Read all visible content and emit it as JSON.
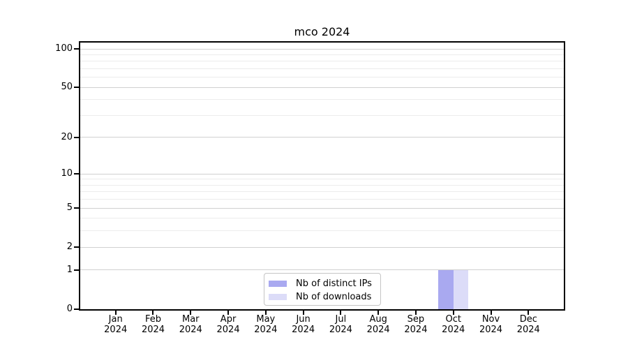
{
  "chart_data": {
    "type": "bar",
    "title": "mco 2024",
    "categories": [
      "Jan",
      "Feb",
      "Mar",
      "Apr",
      "May",
      "Jun",
      "Jul",
      "Aug",
      "Sep",
      "Oct",
      "Nov",
      "Dec"
    ],
    "x_year_label": "2024",
    "series": [
      {
        "name": "Nb of distinct IPs",
        "color": "#a9a9f0",
        "values": [
          0,
          0,
          0,
          0,
          0,
          0,
          0,
          0,
          0,
          1,
          0,
          0
        ]
      },
      {
        "name": "Nb of downloads",
        "color": "#dcdcf8",
        "values": [
          0,
          0,
          0,
          0,
          0,
          0,
          0,
          0,
          0,
          1,
          0,
          0
        ]
      }
    ],
    "y_axis": {
      "scale": "log10(1+x)",
      "max": 112,
      "ticks": [
        0,
        1,
        2,
        5,
        10,
        20,
        50,
        100
      ],
      "minor_gridlines": [
        3,
        4,
        6,
        7,
        8,
        9,
        30,
        40,
        60,
        70,
        80,
        90
      ]
    },
    "legend_position": "bottom-center-inside",
    "grid": "horizontal",
    "colors": {
      "bar_distinct_ips": "#a9a9f0",
      "bar_downloads": "#dcdcf8",
      "major_gridline": "#d0d0d0",
      "minor_gridline": "#ececec",
      "axis": "#000000",
      "background": "#ffffff"
    }
  }
}
